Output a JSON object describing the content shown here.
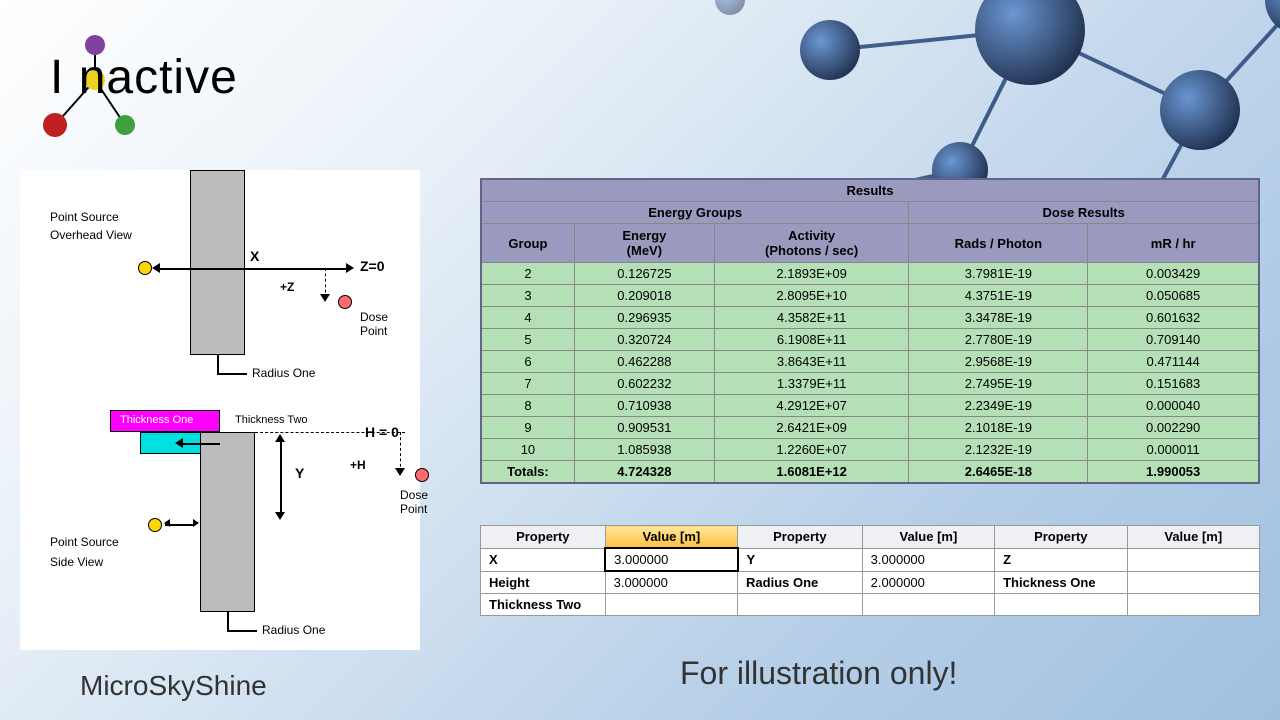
{
  "logo_text": "Ionactive",
  "app_title": "MicroSkyShine",
  "footer_note": "For illustration only!",
  "diagram": {
    "overhead": {
      "title_line1": "Point Source",
      "title_line2": "Overhead View",
      "x_label": "X",
      "z_label": "Z=0",
      "plus_z": "+Z",
      "dose_point": "Dose\nPoint",
      "radius_one": "Radius One"
    },
    "side": {
      "thickness_one": "Thickness One",
      "thickness_two": "Thickness Two",
      "h_label": "H = 0",
      "plus_h": "+H",
      "y_label": "Y",
      "dose_point": "Dose\nPoint",
      "title_line1": "Point Source",
      "title_line2": "Side View",
      "radius_one": "Radius One"
    }
  },
  "results": {
    "title": "Results",
    "group_header": "Energy Groups",
    "dose_header": "Dose Results",
    "columns": {
      "group": "Group",
      "energy": "Energy\n(MeV)",
      "activity": "Activity\n(Photons / sec)",
      "rads": "Rads / Photon",
      "mr_hr": "mR / hr"
    },
    "rows": [
      {
        "group": "2",
        "energy": "0.126725",
        "activity": "2.1893E+09",
        "rads": "3.7981E-19",
        "mr_hr": "0.003429"
      },
      {
        "group": "3",
        "energy": "0.209018",
        "activity": "2.8095E+10",
        "rads": "4.3751E-19",
        "mr_hr": "0.050685"
      },
      {
        "group": "4",
        "energy": "0.296935",
        "activity": "4.3582E+11",
        "rads": "3.3478E-19",
        "mr_hr": "0.601632"
      },
      {
        "group": "5",
        "energy": "0.320724",
        "activity": "6.1908E+11",
        "rads": "2.7780E-19",
        "mr_hr": "0.709140"
      },
      {
        "group": "6",
        "energy": "0.462288",
        "activity": "3.8643E+11",
        "rads": "2.9568E-19",
        "mr_hr": "0.471144"
      },
      {
        "group": "7",
        "energy": "0.602232",
        "activity": "1.3379E+11",
        "rads": "2.7495E-19",
        "mr_hr": "0.151683"
      },
      {
        "group": "8",
        "energy": "0.710938",
        "activity": "4.2912E+07",
        "rads": "2.2349E-19",
        "mr_hr": "0.000040"
      },
      {
        "group": "9",
        "energy": "0.909531",
        "activity": "2.6421E+09",
        "rads": "2.1018E-19",
        "mr_hr": "0.002290"
      },
      {
        "group": "10",
        "energy": "1.085938",
        "activity": "1.2260E+07",
        "rads": "2.1232E-19",
        "mr_hr": "0.000011"
      }
    ],
    "totals": {
      "label": "Totals:",
      "energy": "4.724328",
      "activity": "1.6081E+12",
      "rads": "2.6465E-18",
      "mr_hr": "1.990053"
    }
  },
  "props": {
    "columns": {
      "property": "Property",
      "value": "Value [m]"
    },
    "cells": [
      {
        "prop": "X",
        "value": "3.000000",
        "prop2": "Y",
        "value2": "3.000000",
        "prop3": "Z",
        "value3": ""
      },
      {
        "prop": "Height",
        "value": "3.000000",
        "prop2": "Radius One",
        "value2": "2.000000",
        "prop3": "Thickness One",
        "value3": ""
      },
      {
        "prop": "Thickness Two",
        "value": "",
        "prop2": "",
        "value2": "",
        "prop3": "",
        "value3": ""
      }
    ]
  },
  "colors": {
    "results_header_bg": "#9a9abf",
    "results_body_bg": "#b5e0b5",
    "highlight_col_bg": "#d8d890",
    "props_header_bg": "#eef0f4"
  }
}
